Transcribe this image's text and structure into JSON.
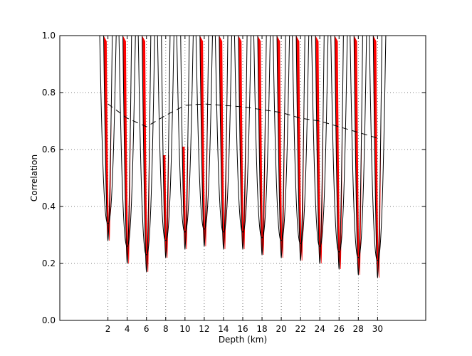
{
  "chart_data": {
    "type": "area",
    "xlabel": "Depth (km)",
    "ylabel": "Correlation",
    "xlim": [
      -3,
      35
    ],
    "ylim": [
      0.0,
      1.0
    ],
    "grid": "dotted",
    "xticks": [
      2,
      4,
      6,
      8,
      10,
      12,
      14,
      16,
      18,
      20,
      22,
      24,
      26,
      28,
      30
    ],
    "yticks": [
      0.0,
      0.2,
      0.4,
      0.6,
      0.8,
      1.0
    ],
    "ytick_labels": [
      "0.0",
      "0.2",
      "0.4",
      "0.6",
      "0.8",
      "1.0"
    ],
    "peaks": [
      {
        "depth": 2,
        "min_correlation": 0.28,
        "shaded_top": 1.0
      },
      {
        "depth": 4,
        "min_correlation": 0.2,
        "shaded_top": 1.0
      },
      {
        "depth": 6,
        "min_correlation": 0.17,
        "shaded_top": 1.0
      },
      {
        "depth": 8,
        "min_correlation": 0.22,
        "shaded_top": 0.58
      },
      {
        "depth": 10,
        "min_correlation": 0.25,
        "shaded_top": 0.61
      },
      {
        "depth": 12,
        "min_correlation": 0.26,
        "shaded_top": 1.0
      },
      {
        "depth": 14,
        "min_correlation": 0.25,
        "shaded_top": 1.0
      },
      {
        "depth": 16,
        "min_correlation": 0.25,
        "shaded_top": 1.0
      },
      {
        "depth": 18,
        "min_correlation": 0.23,
        "shaded_top": 1.0
      },
      {
        "depth": 20,
        "min_correlation": 0.22,
        "shaded_top": 1.0
      },
      {
        "depth": 22,
        "min_correlation": 0.21,
        "shaded_top": 1.0
      },
      {
        "depth": 24,
        "min_correlation": 0.2,
        "shaded_top": 1.0
      },
      {
        "depth": 26,
        "min_correlation": 0.18,
        "shaded_top": 1.0
      },
      {
        "depth": 28,
        "min_correlation": 0.16,
        "shaded_top": 1.0
      },
      {
        "depth": 30,
        "min_correlation": 0.15,
        "shaded_top": 1.0
      }
    ],
    "dashed_line": {
      "x": [
        2,
        4,
        6,
        8,
        10,
        12,
        14,
        16,
        18,
        20,
        22,
        24,
        26,
        28,
        30
      ],
      "y": [
        0.76,
        0.71,
        0.68,
        0.72,
        0.755,
        0.76,
        0.755,
        0.75,
        0.74,
        0.73,
        0.71,
        0.7,
        0.68,
        0.66,
        0.64
      ]
    },
    "colors": {
      "fill": "#ff0000",
      "line": "#000000",
      "grid": "#555555"
    }
  }
}
